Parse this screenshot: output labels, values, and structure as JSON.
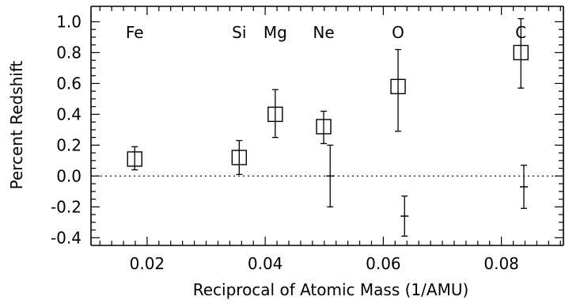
{
  "chart_data": {
    "type": "scatter",
    "title": "",
    "xlabel": "Reciprocal of Atomic Mass (1/AMU)",
    "ylabel": "Percent Redshift",
    "xlim": [
      0.0105,
      0.0905
    ],
    "ylim": [
      -0.45,
      1.1
    ],
    "x_ticks": [
      0.02,
      0.04,
      0.06,
      0.08
    ],
    "x_tick_labels": [
      "0.02",
      "0.04",
      "0.06",
      "0.08"
    ],
    "y_ticks": [
      -0.4,
      -0.2,
      0.0,
      0.2,
      0.4,
      0.6,
      0.8,
      1.0
    ],
    "y_tick_labels": [
      "-0.4",
      "-0.2",
      "0.0",
      "0.2",
      "0.4",
      "0.6",
      "0.8",
      "1.0"
    ],
    "zero_line": 0.0,
    "element_labels": [
      {
        "text": "Fe",
        "x": 0.0179
      },
      {
        "text": "Si",
        "x": 0.0356
      },
      {
        "text": "Mg",
        "x": 0.0417
      },
      {
        "text": "Ne",
        "x": 0.0499
      },
      {
        "text": "O",
        "x": 0.0625
      },
      {
        "text": "C",
        "x": 0.0833
      }
    ],
    "series": [
      {
        "marker": "square",
        "points": [
          {
            "x": 0.0179,
            "y": 0.11,
            "y_low": 0.04,
            "y_high": 0.19
          },
          {
            "x": 0.0356,
            "y": 0.12,
            "y_low": 0.01,
            "y_high": 0.23
          },
          {
            "x": 0.0417,
            "y": 0.4,
            "y_low": 0.25,
            "y_high": 0.56
          },
          {
            "x": 0.0499,
            "y": 0.32,
            "y_low": 0.21,
            "y_high": 0.42
          },
          {
            "x": 0.0625,
            "y": 0.58,
            "y_low": 0.29,
            "y_high": 0.82
          },
          {
            "x": 0.0833,
            "y": 0.8,
            "y_low": 0.57,
            "y_high": 1.02
          }
        ]
      },
      {
        "marker": "plus",
        "points": [
          {
            "x": 0.051,
            "y": 0.0,
            "y_low": -0.2,
            "y_high": 0.2
          },
          {
            "x": 0.0636,
            "y": -0.26,
            "y_low": -0.39,
            "y_high": -0.13
          },
          {
            "x": 0.0838,
            "y": -0.07,
            "y_low": -0.21,
            "y_high": 0.07
          }
        ]
      }
    ],
    "grid": false,
    "legend": "none"
  }
}
